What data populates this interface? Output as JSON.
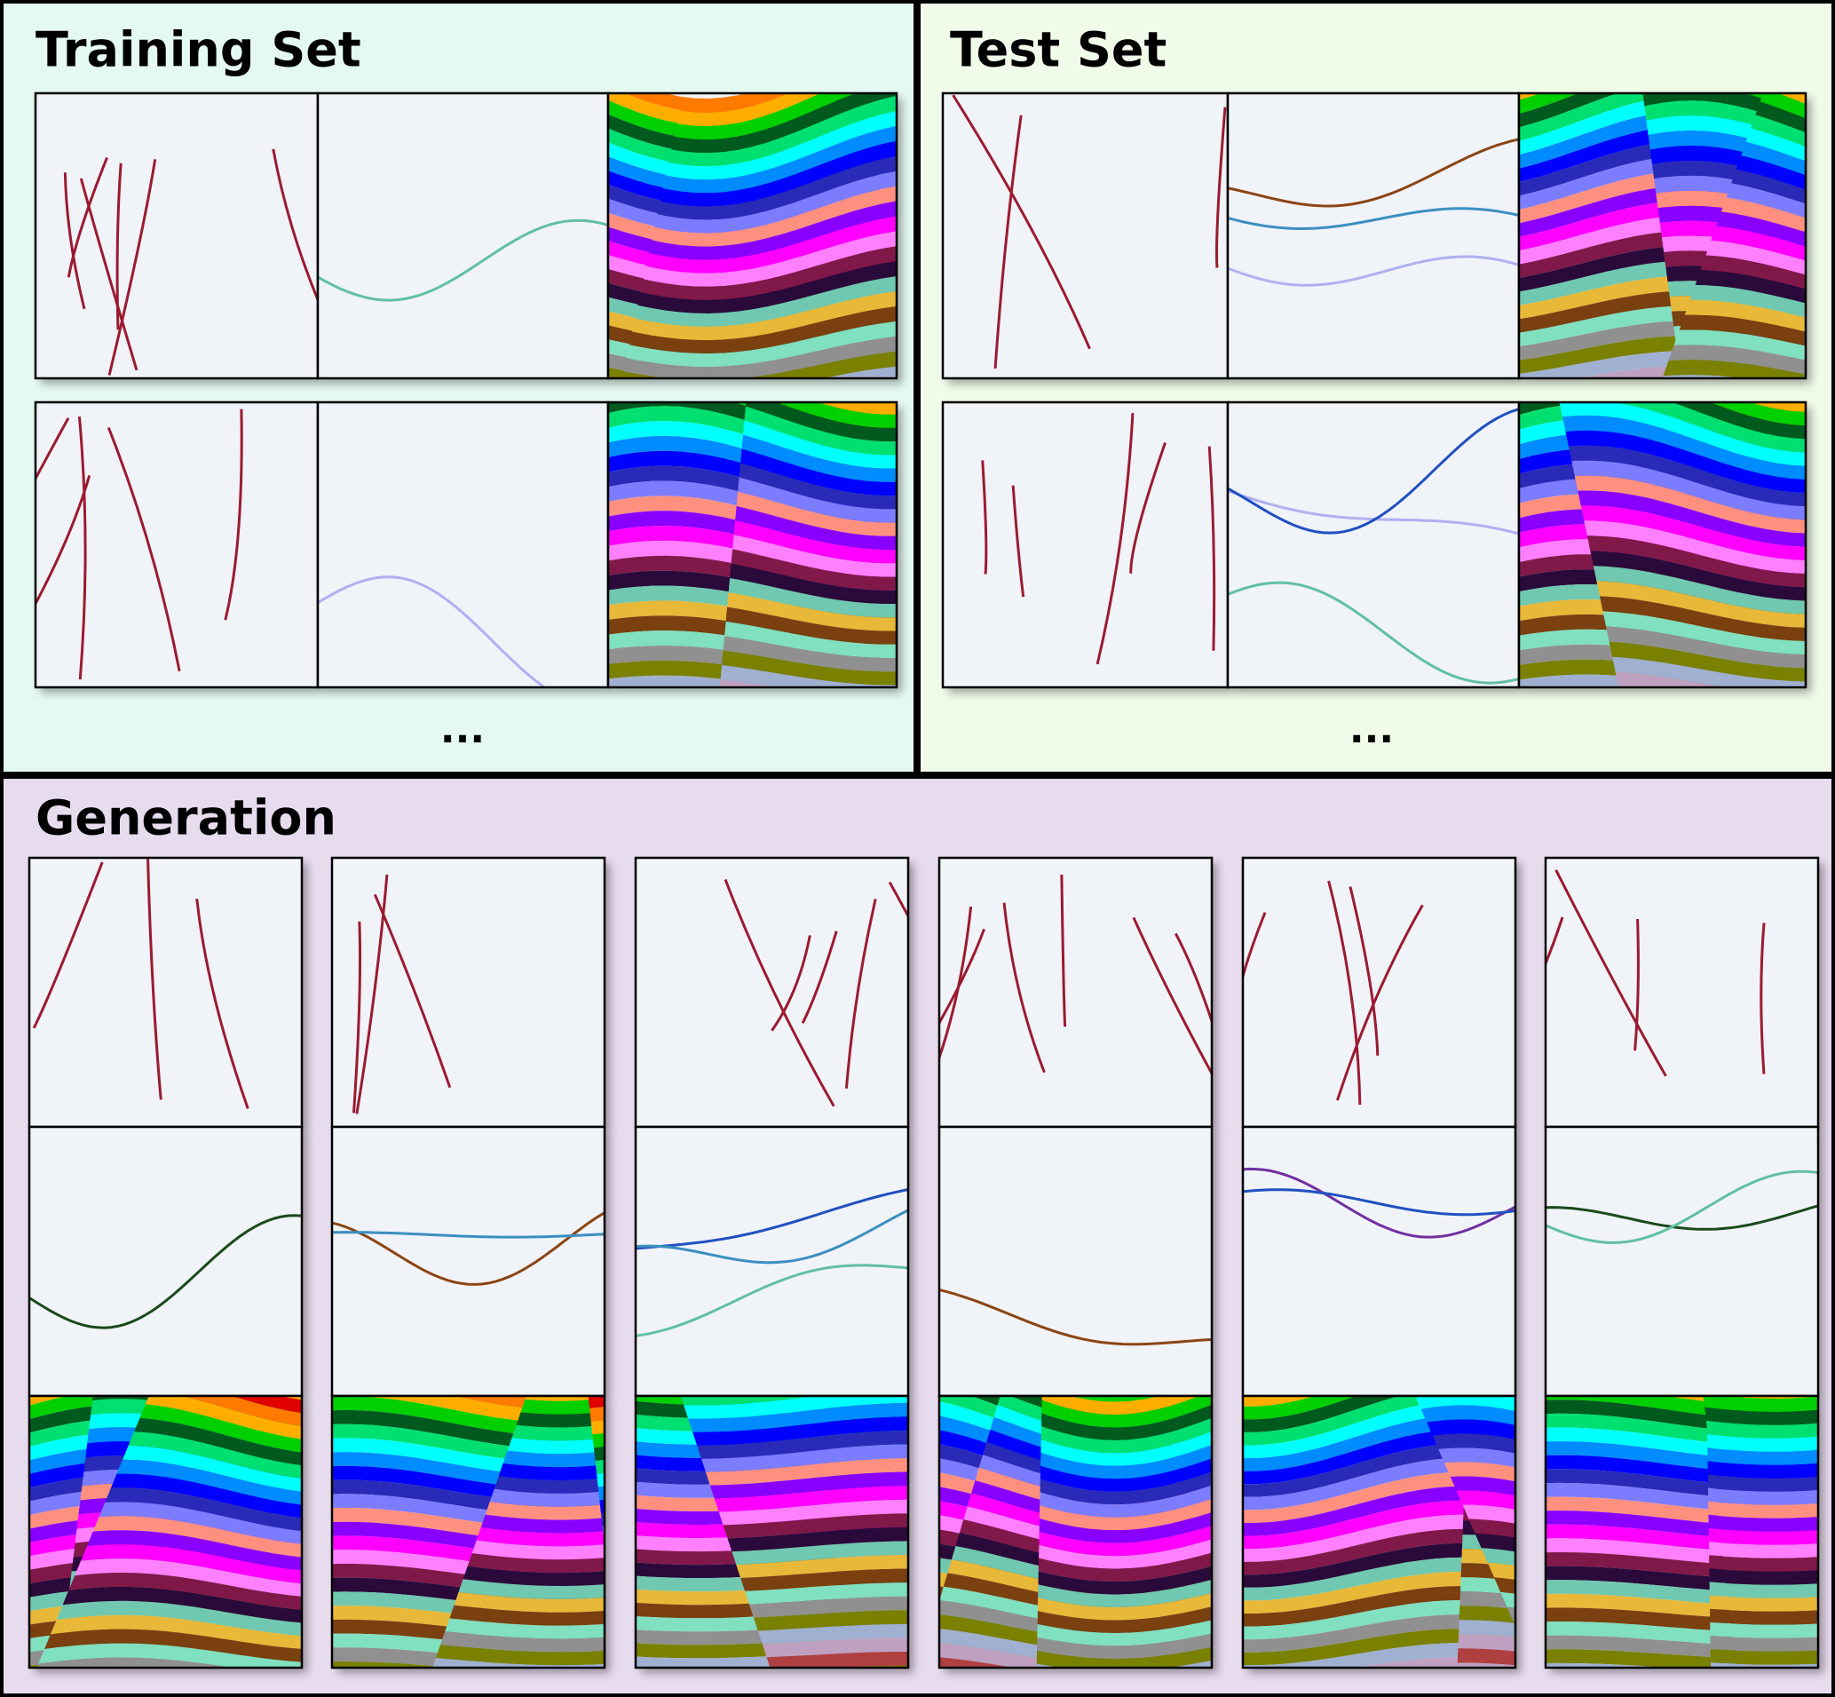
{
  "training": {
    "title": "Training Set",
    "more": "..."
  },
  "test": {
    "title": "Test Set",
    "more": "..."
  },
  "generation": {
    "title": "Generation"
  }
}
